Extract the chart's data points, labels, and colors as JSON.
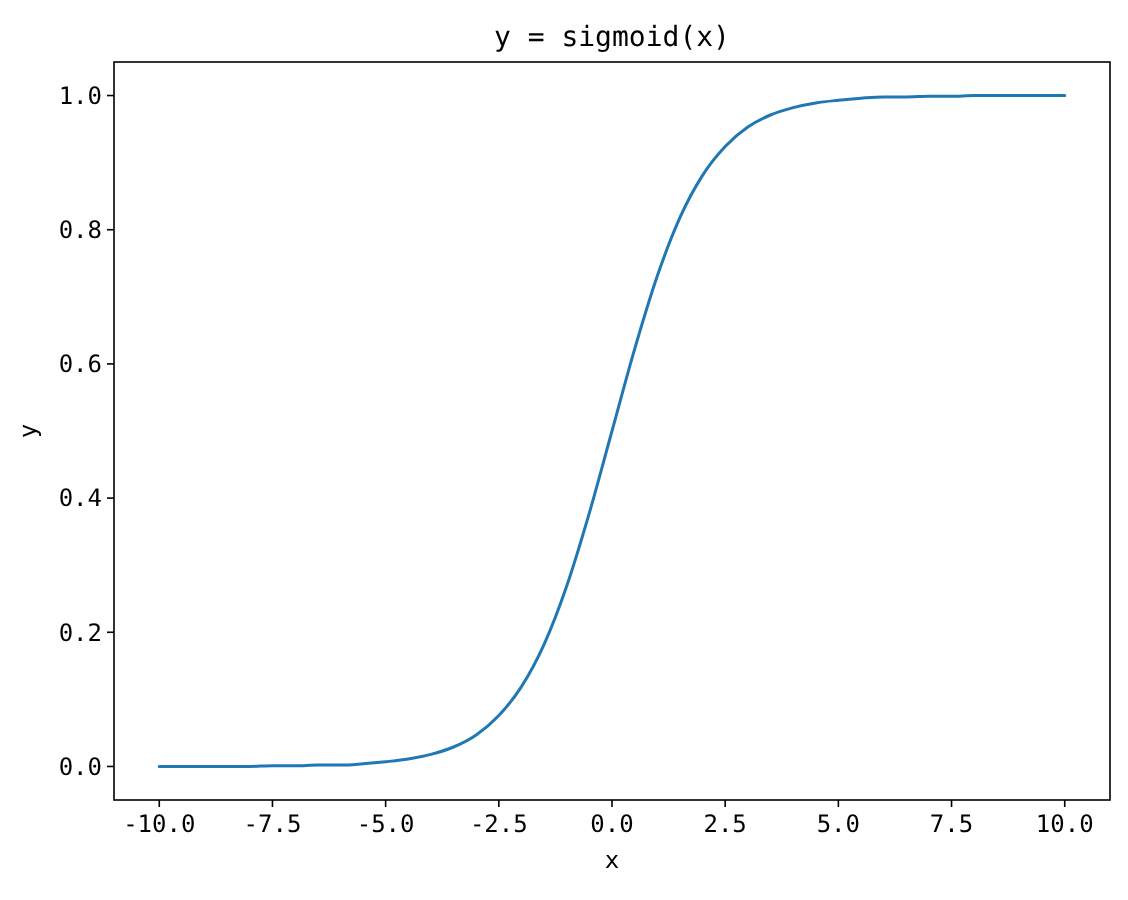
{
  "chart_data": {
    "type": "line",
    "title": "y = sigmoid(x)",
    "xlabel": "x",
    "ylabel": "y",
    "x": [
      -10,
      -9.5,
      -9,
      -8.5,
      -8,
      -7.5,
      -7,
      -6.5,
      -6,
      -5.5,
      -5,
      -4.5,
      -4,
      -3.5,
      -3,
      -2.5,
      -2,
      -1.5,
      -1,
      -0.5,
      0,
      0.5,
      1,
      1.5,
      2,
      2.5,
      3,
      3.5,
      4,
      4.5,
      5,
      5.5,
      6,
      6.5,
      7,
      7.5,
      8,
      8.5,
      9,
      9.5,
      10
    ],
    "series": [
      {
        "color": "#1f77b4",
        "values": [
          0.0,
          0.0,
          0.0,
          0.0,
          0.0,
          0.001,
          0.001,
          0.002,
          0.002,
          0.004,
          0.007,
          0.011,
          0.018,
          0.029,
          0.047,
          0.076,
          0.119,
          0.182,
          0.269,
          0.378,
          0.5,
          0.622,
          0.731,
          0.818,
          0.881,
          0.924,
          0.953,
          0.971,
          0.982,
          0.989,
          0.993,
          0.996,
          0.998,
          0.998,
          0.999,
          0.999,
          1.0,
          1.0,
          1.0,
          1.0,
          1.0
        ]
      }
    ],
    "xlim": [
      -11,
      11
    ],
    "xticks": [
      {
        "value": -10,
        "label": "-10.0"
      },
      -7.5,
      {
        "value": -5,
        "label": "-5.0"
      },
      -2.5,
      {
        "value": 0,
        "label": "0.0"
      },
      2.5,
      {
        "value": 5,
        "label": "5.0"
      },
      7.5,
      {
        "value": 10,
        "label": "10.0"
      }
    ],
    "ylim": [
      -0.05,
      1.05
    ],
    "yticks": [
      {
        "value": 0,
        "label": "0.0"
      },
      0.2,
      0.4,
      0.6,
      0.8,
      {
        "value": 1,
        "label": "1.0"
      }
    ],
    "grid": false,
    "marker": "none",
    "line_style": "solid"
  }
}
